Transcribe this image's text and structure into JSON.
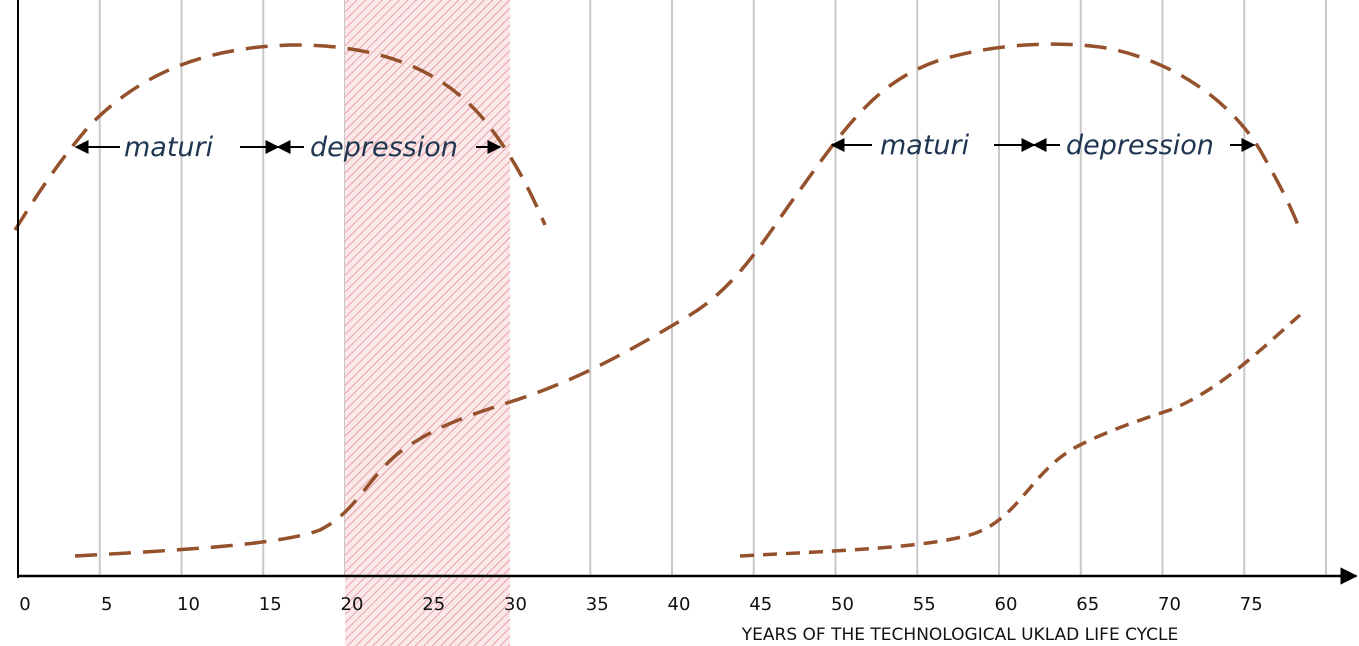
{
  "x_axis": {
    "ticks": [
      0,
      5,
      10,
      15,
      20,
      25,
      30,
      35,
      40,
      45,
      50,
      55,
      60,
      65,
      70,
      75
    ],
    "label": "YEARS OF THE TECHNOLOGICAL UKLAD LIFE CYCLE"
  },
  "phases": [
    {
      "first": "maturi",
      "second": "depression"
    },
    {
      "first": "maturi",
      "second": "depression"
    }
  ]
}
